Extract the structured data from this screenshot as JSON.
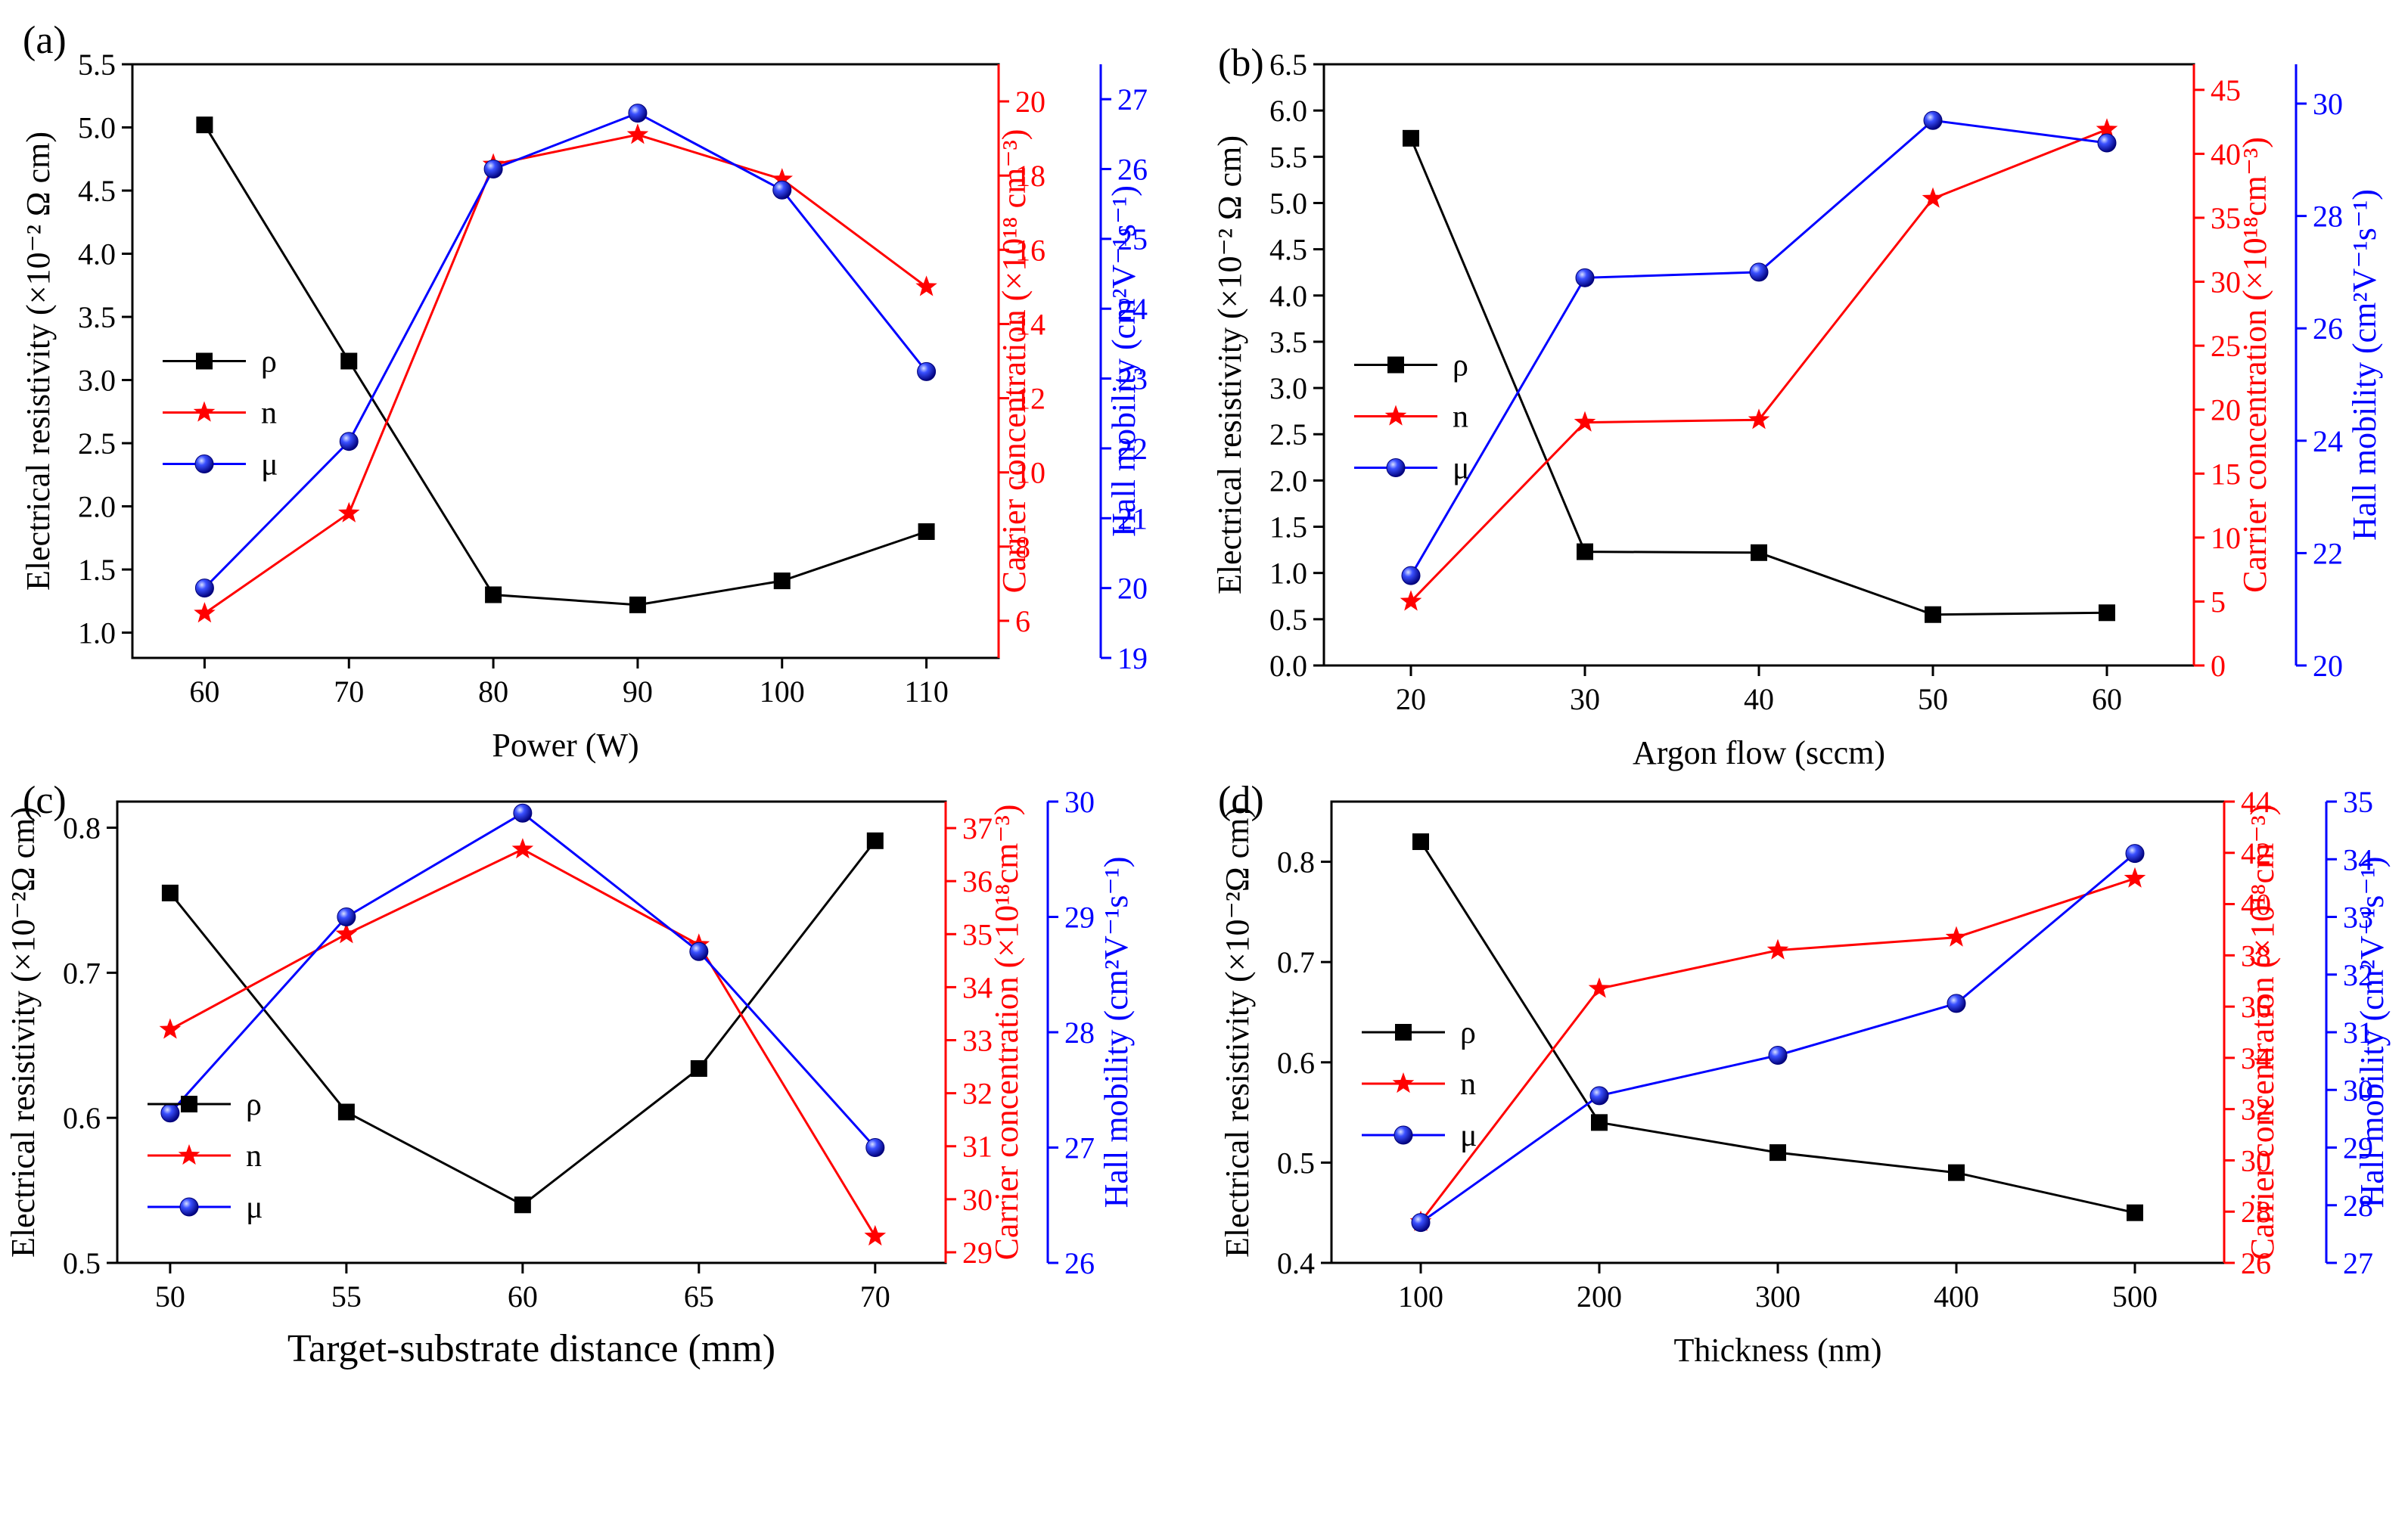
{
  "colors": {
    "rho": "#000000",
    "n": "#ff0000",
    "mu": "#0000ff",
    "axis": "#000000"
  },
  "chart_data": [
    {
      "type": "line",
      "panel_label": "(a)",
      "xlabel": "Power (W)",
      "x": [
        60,
        70,
        80,
        90,
        100,
        110
      ],
      "xticks": [
        "60",
        "70",
        "80",
        "90",
        "100",
        "110"
      ],
      "xlim": [
        55,
        115
      ],
      "y1label": "Electrical resistivity (×10⁻² Ω cm)",
      "y1ticks": [
        "1.0",
        "1.5",
        "2.0",
        "2.5",
        "3.0",
        "3.5",
        "4.0",
        "4.5",
        "5.0",
        "5.5"
      ],
      "y1lim": [
        0.8,
        5.5
      ],
      "y2label": "Carrier concentration (×10¹⁸ cm⁻³)",
      "y2ticks": [
        "6",
        "8",
        "10",
        "12",
        "14",
        "16",
        "18",
        "20"
      ],
      "y2lim": [
        5,
        21
      ],
      "y3label": "Hall mobility (cm²V⁻¹s⁻¹)",
      "y3ticks": [
        "19",
        "20",
        "21",
        "22",
        "23",
        "24",
        "25",
        "26",
        "27"
      ],
      "y3lim": [
        19,
        27.5
      ],
      "legend_position": "left",
      "series": [
        {
          "name": "ρ",
          "axis": "y1",
          "marker": "square",
          "values": [
            5.02,
            3.15,
            1.3,
            1.22,
            1.41,
            1.8
          ]
        },
        {
          "name": "n",
          "axis": "y2",
          "marker": "star",
          "values": [
            6.2,
            8.9,
            18.3,
            19.1,
            17.9,
            15.0
          ]
        },
        {
          "name": "μ",
          "axis": "y3",
          "marker": "sphere",
          "values": [
            20.0,
            22.1,
            26.0,
            26.8,
            25.7,
            23.1
          ]
        }
      ]
    },
    {
      "type": "line",
      "panel_label": "(b)",
      "xlabel": "Argon flow (sccm)",
      "x": [
        20,
        30,
        40,
        50,
        60
      ],
      "xticks": [
        "20",
        "30",
        "40",
        "50",
        "60"
      ],
      "xlim": [
        15,
        65
      ],
      "y1label": "Electrical resistivity (×10⁻² Ω cm)",
      "y1ticks": [
        "0.0",
        "0.5",
        "1.0",
        "1.5",
        "2.0",
        "2.5",
        "3.0",
        "3.5",
        "4.0",
        "4.5",
        "5.0",
        "5.5",
        "6.0",
        "6.5"
      ],
      "y1lim": [
        0,
        6.5
      ],
      "y2label": "Carrier concentration (×10¹⁸cm⁻³)",
      "y2ticks": [
        "0",
        "5",
        "10",
        "15",
        "20",
        "25",
        "30",
        "35",
        "40",
        "45"
      ],
      "y2lim": [
        0,
        47
      ],
      "y3label": "Hall mobility (cm²V⁻¹s⁻¹)",
      "y3ticks": [
        "20",
        "22",
        "24",
        "26",
        "28",
        "30"
      ],
      "y3lim": [
        20,
        30.7
      ],
      "legend_position": "left",
      "series": [
        {
          "name": "ρ",
          "axis": "y1",
          "marker": "square",
          "values": [
            5.7,
            1.23,
            1.22,
            0.55,
            0.57
          ]
        },
        {
          "name": "n",
          "axis": "y2",
          "marker": "star",
          "values": [
            5.0,
            19.0,
            19.2,
            36.5,
            41.9
          ]
        },
        {
          "name": "μ",
          "axis": "y3",
          "marker": "sphere",
          "values": [
            21.6,
            26.9,
            27.0,
            29.7,
            29.3
          ]
        }
      ]
    },
    {
      "type": "line",
      "panel_label": "(c)",
      "xlabel": "Target-substrate distance (mm)",
      "x": [
        50,
        55,
        60,
        65,
        70
      ],
      "xticks": [
        "50",
        "55",
        "60",
        "65",
        "70"
      ],
      "xlim": [
        48.5,
        72
      ],
      "y1label": "Electrical resistivity (×10⁻²Ω cm)",
      "y1ticks": [
        "0.5",
        "0.6",
        "0.7",
        "0.8"
      ],
      "y1lim": [
        0.5,
        0.818
      ],
      "y2label": "Carrier concentration (×10¹⁸cm⁻³)",
      "y2ticks": [
        "29",
        "30",
        "31",
        "32",
        "33",
        "34",
        "35",
        "36",
        "37"
      ],
      "y2lim": [
        28.8,
        37.5
      ],
      "y3label": "Hall mobility (cm²V⁻¹s⁻¹)",
      "y3ticks": [
        "26",
        "27",
        "28",
        "29",
        "30"
      ],
      "y3lim": [
        26,
        30
      ],
      "legend_position": "bottom-left",
      "series": [
        {
          "name": "ρ",
          "axis": "y1",
          "marker": "square",
          "values": [
            0.755,
            0.604,
            0.54,
            0.634,
            0.791
          ]
        },
        {
          "name": "n",
          "axis": "y2",
          "marker": "star",
          "values": [
            33.2,
            35.0,
            36.6,
            34.8,
            29.3
          ]
        },
        {
          "name": "μ",
          "axis": "y3",
          "marker": "sphere",
          "values": [
            27.3,
            29.0,
            29.9,
            28.7,
            27.0
          ]
        }
      ]
    },
    {
      "type": "line",
      "panel_label": "(d)",
      "xlabel": "Thickness (nm)",
      "x": [
        100,
        200,
        300,
        400,
        500
      ],
      "xticks": [
        "100",
        "200",
        "300",
        "400",
        "500"
      ],
      "xlim": [
        50,
        550
      ],
      "y1label": "Electrical resistivity (×10⁻²Ω cm)",
      "y1ticks": [
        "0.4",
        "0.5",
        "0.6",
        "0.7",
        "0.8"
      ],
      "y1lim": [
        0.4,
        0.86
      ],
      "y2label": "Carrier concentration (×10¹⁸cm⁻³)",
      "y2ticks": [
        "26",
        "28",
        "30",
        "32",
        "34",
        "36",
        "38",
        "40",
        "42",
        "44"
      ],
      "y2lim": [
        26,
        44
      ],
      "y3label": "Hall mobility (cm²V⁻¹s⁻¹)",
      "y3ticks": [
        "27",
        "28",
        "29",
        "30",
        "31",
        "32",
        "33",
        "34",
        "35"
      ],
      "y3lim": [
        27,
        35
      ],
      "legend_position": "left",
      "series": [
        {
          "name": "ρ",
          "axis": "y1",
          "marker": "square",
          "values": [
            0.82,
            0.54,
            0.51,
            0.49,
            0.45
          ]
        },
        {
          "name": "n",
          "axis": "y2",
          "marker": "star",
          "values": [
            27.6,
            36.7,
            38.2,
            38.7,
            41.0
          ]
        },
        {
          "name": "μ",
          "axis": "y3",
          "marker": "sphere",
          "values": [
            27.7,
            29.9,
            30.6,
            31.5,
            34.1
          ]
        }
      ]
    }
  ]
}
